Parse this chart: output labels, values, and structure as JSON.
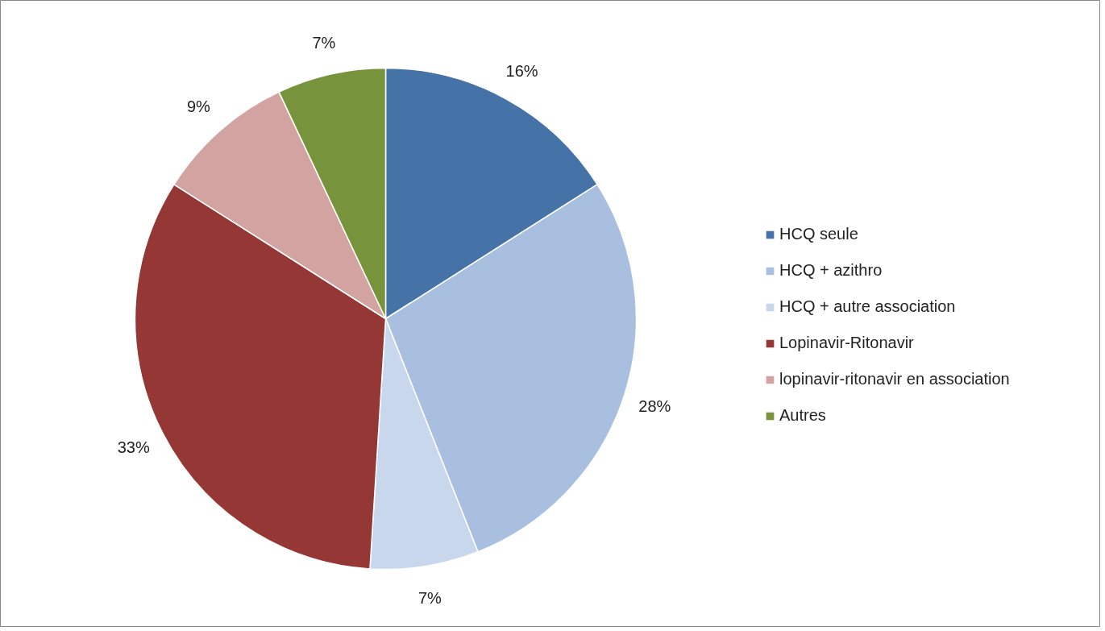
{
  "chart_data": {
    "type": "pie",
    "categories": [
      "HCQ seule",
      "HCQ + azithro",
      "HCQ + autre association",
      "Lopinavir-Ritonavir",
      "lopinavir-ritonavir en association",
      "Autres"
    ],
    "values": [
      16,
      28,
      7,
      33,
      9,
      7
    ],
    "colors": [
      "#4572a7",
      "#a9bfe0",
      "#c9d7ec",
      "#953735",
      "#d3a3a2",
      "#77933c"
    ],
    "value_labels": [
      "16%",
      "28%",
      "7%",
      "33%",
      "9%",
      "7%"
    ],
    "legend": "right"
  }
}
